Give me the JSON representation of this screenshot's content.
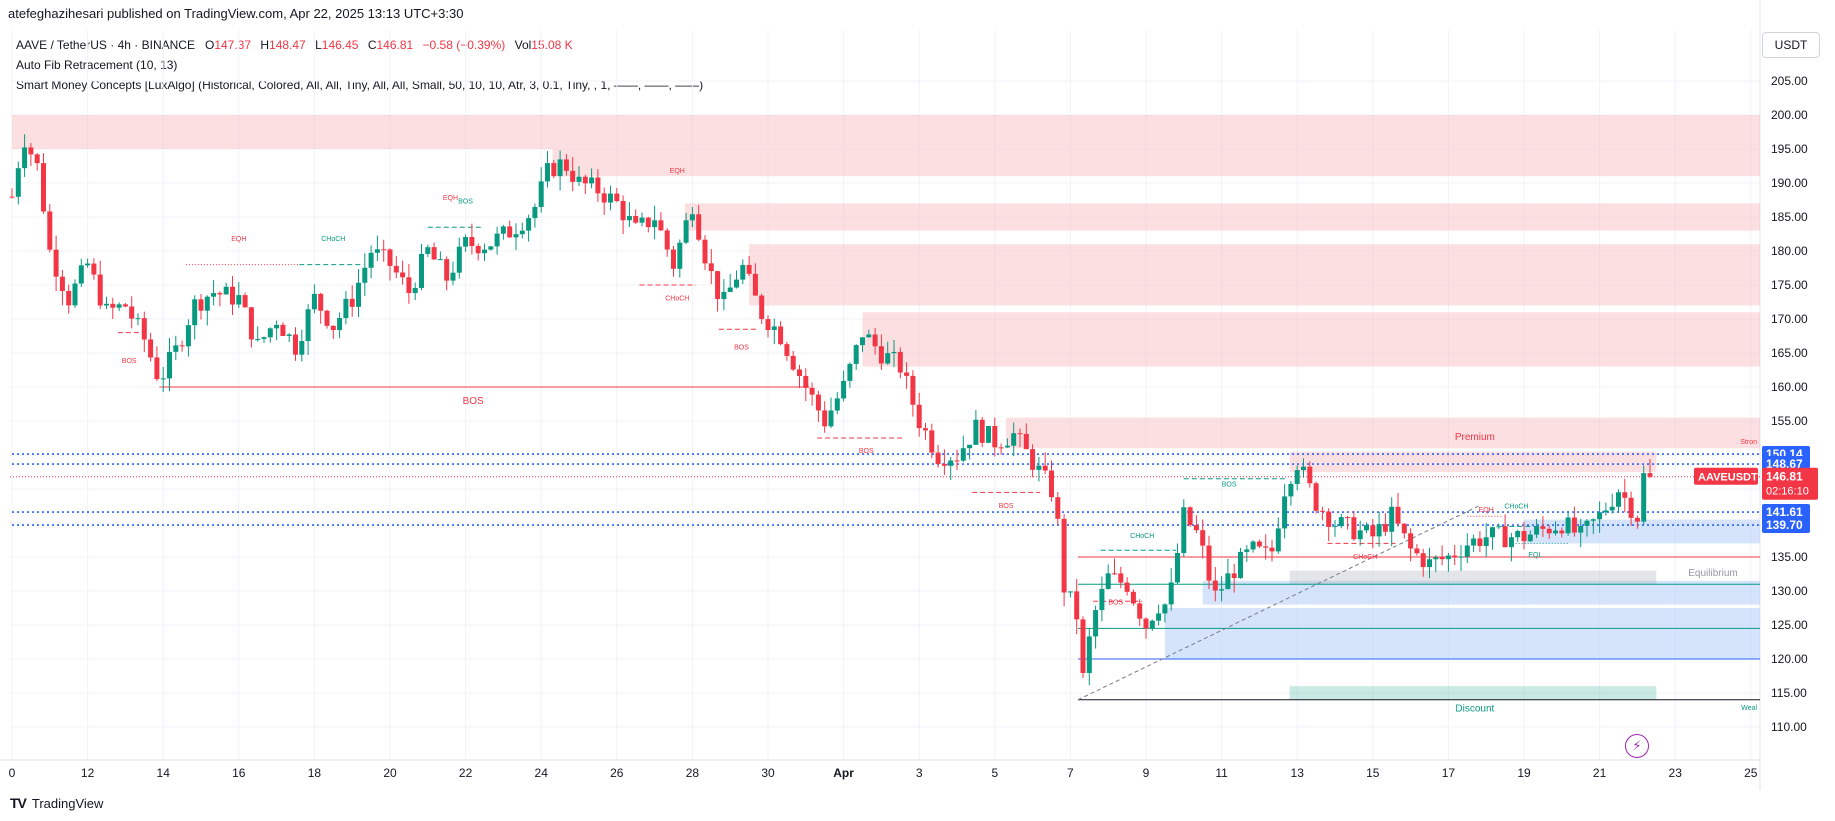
{
  "header": {
    "publish_line": "atefeghazihesari published on TradingView.com, Apr 22, 2025 13:13 UTC+3:30",
    "symbol_line": "AAVE / TetherUS · 4h · BINANCE",
    "ohlc": {
      "o_label": "O",
      "o_value": "147.37",
      "h_label": "H",
      "h_value": "148.47",
      "l_label": "L",
      "l_value": "146.45",
      "c_label": "C",
      "c_value": "146.81",
      "change": "−0.58 (−0.39%)",
      "vol_label": "Vol",
      "vol_value": "15.08 K"
    },
    "indicator_1": "Auto Fib Retracement (10, 13)",
    "indicator_2": "Smart Money Concepts [LuxAlgo] (Historical, Colored, All, All, Tiny, All, All, Small, 50, 10, 10, Atr, 3, 0.1, Tiny, , 1, ——, ——, ——)",
    "currency": "USDT"
  },
  "footer": {
    "logo_text": "TradingView",
    "logo_mark": "TV"
  },
  "icons": {
    "replay": "lightning-bolt-icon"
  },
  "colors": {
    "bull": "#089981",
    "bear": "#F23645",
    "supply": "#F7B8BC",
    "demand": "#B3CDF8",
    "fib_blue": "#2962FF",
    "price_label": "#F23645",
    "level_label": "#2962FF"
  },
  "chart_data": {
    "type": "candlestick",
    "symbol": "AAVEUSDT",
    "interval": "4h",
    "ylim": [
      106,
      209
    ],
    "y_ticks": [
      110,
      115,
      120,
      125,
      130,
      135,
      140,
      145,
      150,
      155,
      160,
      165,
      170,
      175,
      180,
      185,
      190,
      195,
      200,
      205
    ],
    "y_tick_labels": [
      "110.00",
      "115.00",
      "120.00",
      "125.00",
      "130.00",
      "135.00",
      "140.00",
      "145.00",
      "150.00",
      "155.00",
      "160.00",
      "165.00",
      "170.00",
      "175.00",
      "180.00",
      "185.00",
      "190.00",
      "195.00",
      "200.00",
      "205.00"
    ],
    "x_ticks": [
      {
        "label": "0",
        "day": 0
      },
      {
        "label": "12",
        "day": 2
      },
      {
        "label": "14",
        "day": 4
      },
      {
        "label": "16",
        "day": 6
      },
      {
        "label": "18",
        "day": 8
      },
      {
        "label": "20",
        "day": 10
      },
      {
        "label": "22",
        "day": 12
      },
      {
        "label": "24",
        "day": 14
      },
      {
        "label": "26",
        "day": 16
      },
      {
        "label": "28",
        "day": 18
      },
      {
        "label": "30",
        "day": 20
      },
      {
        "label": "Apr",
        "day": 22
      },
      {
        "label": "3",
        "day": 24
      },
      {
        "label": "5",
        "day": 26
      },
      {
        "label": "7",
        "day": 28
      },
      {
        "label": "9",
        "day": 30
      },
      {
        "label": "11",
        "day": 32
      },
      {
        "label": "13",
        "day": 34
      },
      {
        "label": "15",
        "day": 36
      },
      {
        "label": "17",
        "day": 38
      },
      {
        "label": "19",
        "day": 40
      },
      {
        "label": "21",
        "day": 42
      },
      {
        "label": "23",
        "day": 44
      },
      {
        "label": "25",
        "day": 46
      }
    ],
    "close_path": [
      [
        0,
        188
      ],
      [
        0.3,
        197
      ],
      [
        0.7,
        192
      ],
      [
        1,
        180
      ],
      [
        1.5,
        173
      ],
      [
        2,
        178
      ],
      [
        2.5,
        171
      ],
      [
        3,
        172
      ],
      [
        3.5,
        167
      ],
      [
        3.9,
        161
      ],
      [
        4.4,
        166
      ],
      [
        4.8,
        172
      ],
      [
        5.3,
        174
      ],
      [
        6,
        173
      ],
      [
        6.5,
        166
      ],
      [
        7,
        170
      ],
      [
        7.5,
        166
      ],
      [
        8,
        173
      ],
      [
        8.5,
        169
      ],
      [
        9,
        173
      ],
      [
        9.5,
        180
      ],
      [
        10,
        178
      ],
      [
        10.5,
        174
      ],
      [
        11,
        180
      ],
      [
        11.5,
        176
      ],
      [
        12,
        181
      ],
      [
        12.6,
        181
      ],
      [
        13.2,
        183
      ],
      [
        13.8,
        186
      ],
      [
        14.2,
        192
      ],
      [
        14.6,
        193
      ],
      [
        15,
        190
      ],
      [
        15.5,
        189
      ],
      [
        16,
        187
      ],
      [
        16.5,
        183
      ],
      [
        17,
        185
      ],
      [
        17.5,
        178
      ],
      [
        18,
        187
      ],
      [
        18.4,
        178
      ],
      [
        18.8,
        172
      ],
      [
        19.3,
        178
      ],
      [
        19.8,
        171
      ],
      [
        20.3,
        168
      ],
      [
        21,
        160
      ],
      [
        21.5,
        155
      ],
      [
        22,
        160
      ],
      [
        22.5,
        168
      ],
      [
        23,
        165
      ],
      [
        23.5,
        163
      ],
      [
        24,
        155
      ],
      [
        24.5,
        150
      ],
      [
        25,
        150
      ],
      [
        25.5,
        154
      ],
      [
        26,
        152
      ],
      [
        26.5,
        153
      ],
      [
        27,
        149
      ],
      [
        27.6,
        144
      ],
      [
        27.8,
        131
      ],
      [
        28.2,
        126
      ],
      [
        28.3,
        116
      ],
      [
        28.6,
        126
      ],
      [
        29,
        132
      ],
      [
        29.5,
        131
      ],
      [
        30,
        125
      ],
      [
        30.3,
        128
      ],
      [
        30.6,
        128
      ],
      [
        31,
        141
      ],
      [
        31.4,
        138
      ],
      [
        31.8,
        129
      ],
      [
        32.3,
        133
      ],
      [
        32.8,
        136
      ],
      [
        33.3,
        135
      ],
      [
        33.7,
        146
      ],
      [
        34,
        149
      ],
      [
        34.5,
        143
      ],
      [
        35,
        140
      ],
      [
        35.5,
        139
      ],
      [
        36,
        138
      ],
      [
        36.5,
        141
      ],
      [
        37,
        136
      ],
      [
        37.5,
        134
      ],
      [
        38,
        135
      ],
      [
        38.5,
        137
      ],
      [
        39,
        138
      ],
      [
        39.5,
        138
      ],
      [
        40,
        138
      ],
      [
        40.5,
        139
      ],
      [
        41,
        140
      ],
      [
        41.5,
        138
      ],
      [
        42,
        141
      ],
      [
        42.5,
        145
      ],
      [
        43,
        141
      ],
      [
        43.2,
        148
      ],
      [
        43.4,
        146.81
      ]
    ],
    "zones_supply": [
      {
        "y1": 195,
        "y2": 200,
        "d1": 0,
        "d2": 46.5
      },
      {
        "y1": 191,
        "y2": 195,
        "d1": 14.3,
        "d2": 46.5
      },
      {
        "y1": 183,
        "y2": 187,
        "d1": 17.8,
        "d2": 46.5
      },
      {
        "y1": 172,
        "y2": 181,
        "d1": 19.5,
        "d2": 46.5
      },
      {
        "y1": 163,
        "y2": 171,
        "d1": 22.5,
        "d2": 46.5
      },
      {
        "y1": 151,
        "y2": 155.5,
        "d1": 26.3,
        "d2": 46.5
      },
      {
        "y1": 147.5,
        "y2": 150.5,
        "d1": 33.8,
        "d2": 43.5
      }
    ],
    "zones_demand": [
      {
        "y1": 120,
        "y2": 127.5,
        "d1": 30.5,
        "d2": 46.5
      },
      {
        "y1": 128,
        "y2": 131.5,
        "d1": 31.5,
        "d2": 46.5
      },
      {
        "y1": 137,
        "y2": 140.5,
        "d1": 40,
        "d2": 46.5
      }
    ],
    "equilibrium_zone": {
      "y1": 131,
      "y2": 133,
      "d1": 33.8,
      "d2": 43.5,
      "label": "Equilibrium"
    },
    "premium_label": "Premium",
    "discount_zone": {
      "y1": 114,
      "y2": 116,
      "d1": 33.8,
      "d2": 43.5,
      "label": "Discount"
    },
    "strong_high_label": "Stron",
    "weak_low_label": "Weal",
    "structure_labels": [
      {
        "text": "BOS",
        "day": 3.1,
        "y": 163.5,
        "color": "#F23645"
      },
      {
        "text": "EQH",
        "day": 6.0,
        "y": 181.5,
        "color": "#F23645"
      },
      {
        "text": "CHoCH",
        "day": 8.5,
        "y": 181.5,
        "color": "#089981"
      },
      {
        "text": "EQH",
        "day": 11.6,
        "y": 187.5,
        "color": "#F23645"
      },
      {
        "text": "BOS",
        "day": 12.0,
        "y": 187,
        "color": "#089981"
      },
      {
        "text": "BOS",
        "day": 12.2,
        "y": 157.5,
        "color": "#F23645",
        "large": true
      },
      {
        "text": "EQH",
        "day": 17.6,
        "y": 191.5,
        "color": "#F23645"
      },
      {
        "text": "CHoCH",
        "day": 17.6,
        "y": 172.7,
        "color": "#F23645"
      },
      {
        "text": "BOS",
        "day": 19.3,
        "y": 165.5,
        "color": "#F23645"
      },
      {
        "text": "BOS",
        "day": 22.6,
        "y": 150.3,
        "color": "#F23645"
      },
      {
        "text": "BOS",
        "day": 26.3,
        "y": 142.2,
        "color": "#F23645"
      },
      {
        "text": "CHoCH",
        "day": 29.9,
        "y": 137.8,
        "color": "#089981"
      },
      {
        "text": "BOS",
        "day": 29.2,
        "y": 128,
        "color": "#F23645"
      },
      {
        "text": "BOS",
        "day": 32.2,
        "y": 145.4,
        "color": "#089981"
      },
      {
        "text": "CHoCH",
        "day": 35.8,
        "y": 134.7,
        "color": "#F23645"
      },
      {
        "text": "EQH",
        "day": 39.0,
        "y": 141.6,
        "color": "#F23645"
      },
      {
        "text": "CHoCH",
        "day": 39.8,
        "y": 142.1,
        "color": "#089981"
      },
      {
        "text": "EQL",
        "day": 40.3,
        "y": 135.0,
        "color": "#089981"
      }
    ],
    "structure_lines": [
      {
        "y": 160,
        "d1": 3.9,
        "d2": 21.1,
        "color": "#F23645",
        "dash": false
      },
      {
        "y": 168,
        "d1": 2.8,
        "d2": 3.5,
        "color": "#F23645",
        "dash": true
      },
      {
        "y": 178,
        "d1": 4.6,
        "d2": 7.6,
        "color": "#F23645",
        "dash": "dot"
      },
      {
        "y": 178,
        "d1": 7.6,
        "d2": 9.3,
        "color": "#089981",
        "dash": true
      },
      {
        "y": 183.5,
        "d1": 11.0,
        "d2": 12.4,
        "color": "#089981",
        "dash": true
      },
      {
        "y": 175,
        "d1": 16.6,
        "d2": 18.1,
        "color": "#F23645",
        "dash": true
      },
      {
        "y": 168.5,
        "d1": 18.7,
        "d2": 19.7,
        "color": "#F23645",
        "dash": true
      },
      {
        "y": 152.5,
        "d1": 21.3,
        "d2": 23.6,
        "color": "#F23645",
        "dash": true
      },
      {
        "y": 144.5,
        "d1": 25.4,
        "d2": 27.2,
        "color": "#F23645",
        "dash": true
      },
      {
        "y": 136,
        "d1": 28.8,
        "d2": 30.8,
        "color": "#089981",
        "dash": true
      },
      {
        "y": 128.5,
        "d1": 28.6,
        "d2": 29.9,
        "color": "#F23645",
        "dash": true
      },
      {
        "y": 146.5,
        "d1": 31.0,
        "d2": 33.7,
        "color": "#089981",
        "dash": true
      },
      {
        "y": 137.0,
        "d1": 34.8,
        "d2": 36.6,
        "color": "#F23645",
        "dash": true
      },
      {
        "y": 141.0,
        "d1": 38.5,
        "d2": 39.4,
        "color": "#F23645",
        "dash": "dot"
      },
      {
        "y": 139.5,
        "d1": 39.4,
        "d2": 40.5,
        "color": "#089981",
        "dash": true
      },
      {
        "y": 137.0,
        "d1": 39.7,
        "d2": 41.2,
        "color": "#089981",
        "dash": "dot"
      }
    ],
    "fib_levels": [
      {
        "price": 150.14,
        "label": "150.14",
        "d1": 0,
        "d2": 46.5,
        "color": "#2962FF",
        "dotted": true
      },
      {
        "price": 148.67,
        "label": "148.67",
        "d1": 0,
        "d2": 46.5,
        "color": "#2962FF",
        "dotted": true
      },
      {
        "price": 141.61,
        "label": "141.61",
        "d1": 0,
        "d2": 46.5,
        "color": "#2962FF",
        "dotted": true
      },
      {
        "price": 139.7,
        "label": "139.70",
        "d1": 0,
        "d2": 46.5,
        "color": "#2962FF",
        "dotted": true
      },
      {
        "price": 135.0,
        "d1": 28.2,
        "d2": 46.5,
        "color": "#F23645",
        "dotted": false
      },
      {
        "price": 131.0,
        "d1": 28.2,
        "d2": 46.5,
        "color": "#089981",
        "dotted": false
      },
      {
        "price": 124.5,
        "d1": 28.2,
        "d2": 46.5,
        "color": "#089981",
        "dotted": false
      },
      {
        "price": 120.0,
        "d1": 28.2,
        "d2": 46.5,
        "color": "#2962FF",
        "dotted": false
      },
      {
        "price": 114.0,
        "d1": 28.2,
        "d2": 46.5,
        "color": "#131722",
        "dotted": false
      }
    ],
    "fib_diagonal": {
      "d1": 28.2,
      "y1": 114,
      "d2": 38.8,
      "y2": 142.5
    },
    "last_price": {
      "symbol_label": "AAVEUSDT",
      "price": 146.81,
      "price_label": "146.81",
      "countdown": "02:16:10"
    }
  }
}
